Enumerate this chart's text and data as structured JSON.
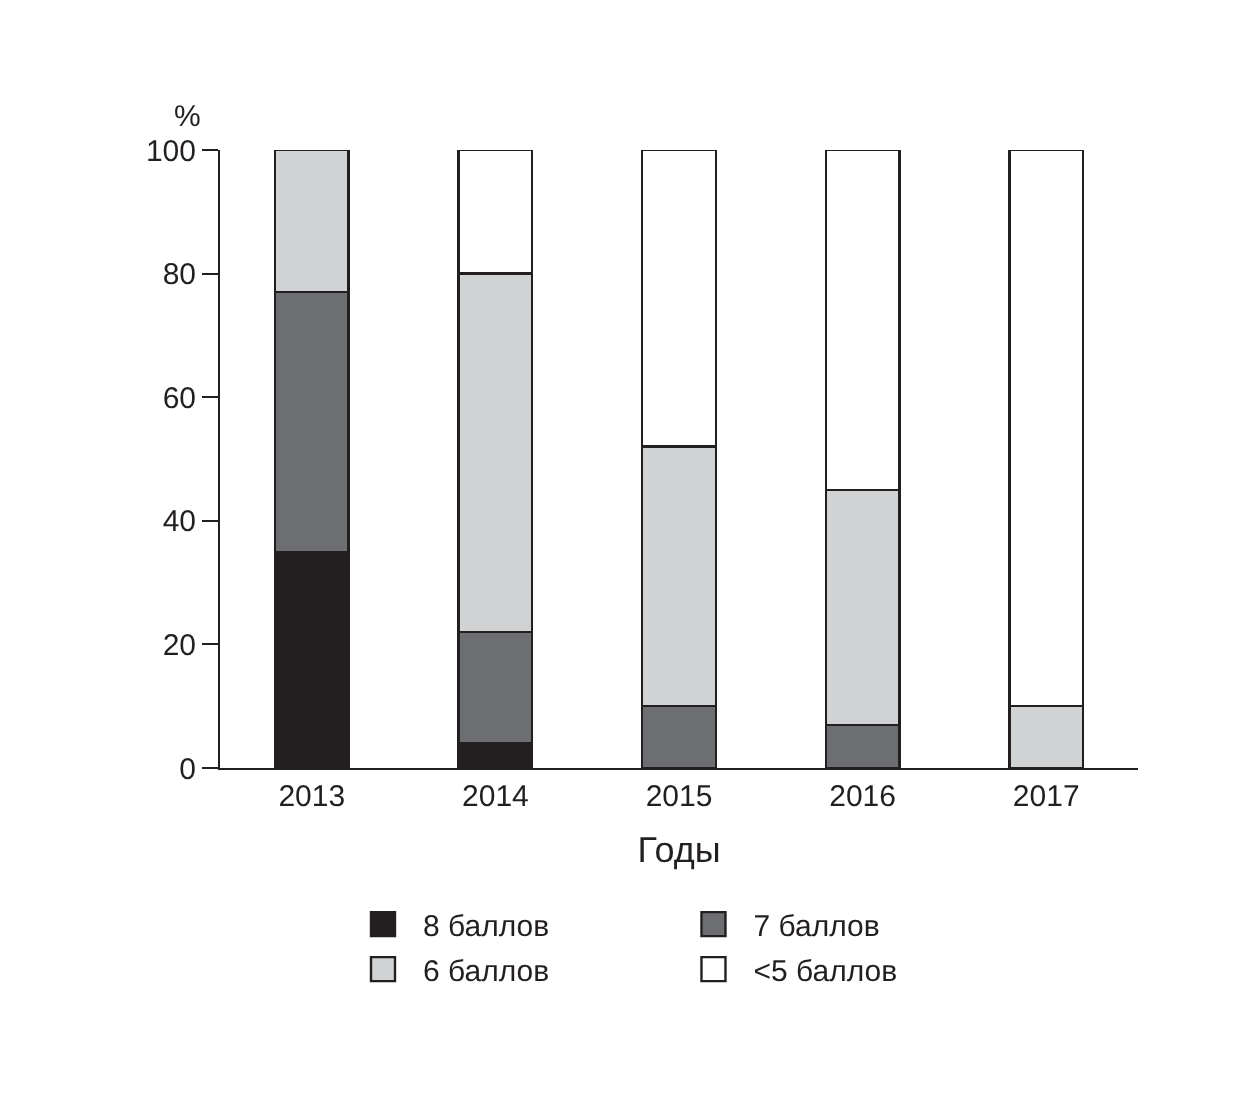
{
  "chart_data": {
    "type": "bar",
    "stacked": true,
    "xlabel": "Годы",
    "ylabel": "%",
    "categories": [
      "2013",
      "2014",
      "2015",
      "2016",
      "2017"
    ],
    "series": [
      {
        "name": "8 баллов",
        "color": "#231f20",
        "values": [
          35,
          4,
          0,
          0,
          0
        ]
      },
      {
        "name": "7 баллов",
        "color": "#6d6e71",
        "values": [
          42,
          18,
          10,
          7,
          0
        ]
      },
      {
        "name": "6 баллов",
        "color": "#d1d2d4",
        "values": [
          23,
          58,
          42,
          38,
          10
        ]
      },
      {
        "name": "<5 баллов",
        "color": "#ffffff",
        "values": [
          0,
          20,
          48,
          55,
          90
        ]
      }
    ],
    "ylim": [
      0,
      100
    ],
    "yticks": [
      0,
      20,
      40,
      60,
      80,
      100
    ],
    "grid": false,
    "legend": "bottom"
  }
}
